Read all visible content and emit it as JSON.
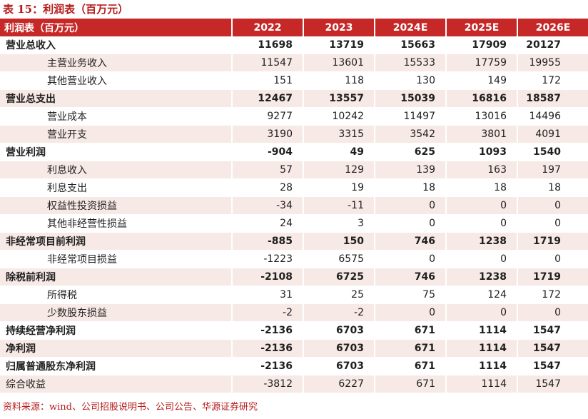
{
  "title": "表 15：利润表（百万元）",
  "source": "资料来源：wind、公司招股说明书、公司公告、华源证券研究",
  "header": [
    "利润表（百万元）",
    "2022",
    "2023",
    "2024E",
    "2025E",
    "2026E"
  ],
  "rows": [
    {
      "label": "营业总收入",
      "values": [
        "11698",
        "13719",
        "15663",
        "17909",
        "20127"
      ]
    },
    {
      "label": "主营业务收入",
      "values": [
        "11547",
        "13601",
        "15533",
        "17759",
        "19955"
      ]
    },
    {
      "label": "其他营业收入",
      "values": [
        "151",
        "118",
        "130",
        "149",
        "172"
      ]
    },
    {
      "label": "营业总支出",
      "values": [
        "12467",
        "13557",
        "15039",
        "16816",
        "18587"
      ]
    },
    {
      "label": "营业成本",
      "values": [
        "9277",
        "10242",
        "11497",
        "13016",
        "14496"
      ]
    },
    {
      "label": "营业开支",
      "values": [
        "3190",
        "3315",
        "3542",
        "3801",
        "4091"
      ]
    },
    {
      "label": "营业利润",
      "values": [
        "-904",
        "49",
        "625",
        "1093",
        "1540"
      ]
    },
    {
      "label": "利息收入",
      "values": [
        "57",
        "129",
        "139",
        "163",
        "197"
      ]
    },
    {
      "label": "利息支出",
      "values": [
        "28",
        "19",
        "18",
        "18",
        "18"
      ]
    },
    {
      "label": "权益性投资损益",
      "values": [
        "-34",
        "-11",
        "0",
        "0",
        "0"
      ]
    },
    {
      "label": "其他非经营性损益",
      "values": [
        "24",
        "3",
        "0",
        "0",
        "0"
      ]
    },
    {
      "label": "非经常项目前利润",
      "values": [
        "-885",
        "150",
        "746",
        "1238",
        "1719"
      ]
    },
    {
      "label": "非经常项目损益",
      "values": [
        "-1223",
        "6575",
        "0",
        "0",
        "0"
      ]
    },
    {
      "label": "除税前利润",
      "values": [
        "-2108",
        "6725",
        "746",
        "1238",
        "1719"
      ]
    },
    {
      "label": "所得税",
      "values": [
        "31",
        "25",
        "75",
        "124",
        "172"
      ]
    },
    {
      "label": "少数股东损益",
      "values": [
        "-2",
        "-2",
        "0",
        "0",
        "0"
      ]
    },
    {
      "label": "持续经营净利润",
      "values": [
        "-2136",
        "6703",
        "671",
        "1114",
        "1547"
      ]
    },
    {
      "label": "净利润",
      "values": [
        "-2136",
        "6703",
        "671",
        "1114",
        "1547"
      ]
    },
    {
      "label": "归属普通股东净利润",
      "values": [
        "-2136",
        "6703",
        "671",
        "1114",
        "1547"
      ]
    },
    {
      "label": "综合收益",
      "values": [
        "-3812",
        "6227",
        "671",
        "1114",
        "1547"
      ]
    }
  ]
}
